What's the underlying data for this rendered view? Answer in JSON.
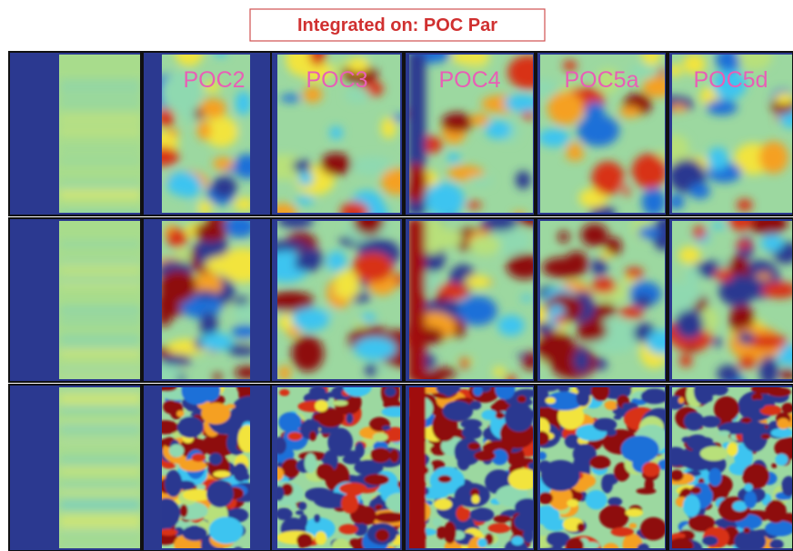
{
  "header": {
    "title": "Integrated on: POC Par"
  },
  "panel_labels": [
    "POC2",
    "POC3",
    "POC4",
    "POC5a",
    "POC5d"
  ]
}
